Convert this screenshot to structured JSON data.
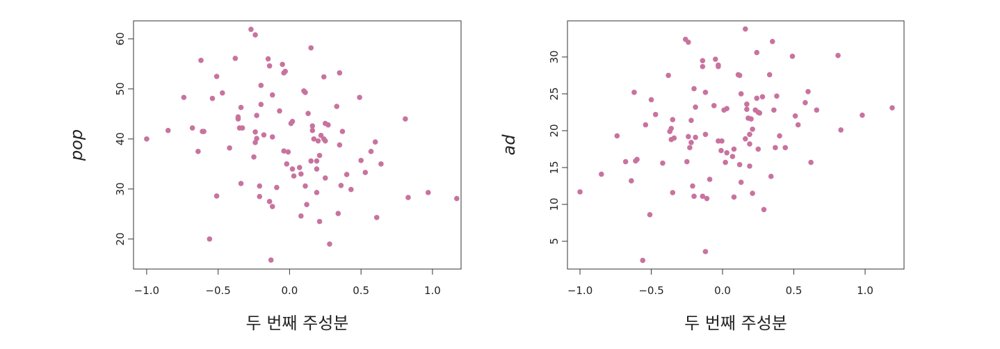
{
  "chart_data": [
    {
      "type": "scatter",
      "x_label": "두 번째 주성분",
      "y_label": "pop",
      "color": "#c8739f",
      "xlim": [
        -1.092,
        1.2
      ],
      "ylim": [
        14.0,
        63.6
      ],
      "xticks": [
        {
          "value": -1.0,
          "label": "−1.0"
        },
        {
          "value": -0.5,
          "label": "−0.5"
        },
        {
          "value": 0.0,
          "label": "0.0"
        },
        {
          "value": 0.5,
          "label": "0.5"
        },
        {
          "value": 1.0,
          "label": "1.0"
        }
      ],
      "yticks": [
        20,
        30,
        40,
        50,
        60
      ],
      "x": [
        -1.0,
        -0.85,
        -0.74,
        -0.68,
        -0.62,
        -0.61,
        -0.6,
        -0.64,
        -0.56,
        -0.54,
        -0.51,
        -0.51,
        -0.47,
        -0.42,
        -0.38,
        -0.36,
        -0.36,
        -0.35,
        -0.34,
        -0.34,
        -0.33,
        -0.27,
        -0.24,
        -0.25,
        -0.24,
        -0.24,
        -0.23,
        -0.23,
        -0.21,
        -0.2,
        -0.21,
        -0.2,
        -0.18,
        -0.15,
        -0.14,
        -0.14,
        -0.13,
        -0.12,
        -0.12,
        -0.12,
        -0.09,
        -0.07,
        -0.05,
        -0.04,
        -0.03,
        -0.04,
        -0.01,
        -0.02,
        0.01,
        0.02,
        0.02,
        0.03,
        0.07,
        0.08,
        0.08,
        0.1,
        0.11,
        0.11,
        0.12,
        0.13,
        0.15,
        0.15,
        0.16,
        0.16,
        0.17,
        0.19,
        0.19,
        0.19,
        0.2,
        0.21,
        0.21,
        0.22,
        0.24,
        0.24,
        0.25,
        0.25,
        0.25,
        0.27,
        0.28,
        0.33,
        0.34,
        0.35,
        0.35,
        0.36,
        0.37,
        0.4,
        0.43,
        0.49,
        0.5,
        0.53,
        0.57,
        0.6,
        0.61,
        0.64,
        0.81,
        0.83,
        0.97,
        1.17
      ],
      "values": [
        40.0,
        41.7,
        48.3,
        42.2,
        55.7,
        41.5,
        41.5,
        37.5,
        20.0,
        48.1,
        28.6,
        52.5,
        49.2,
        38.2,
        56.1,
        44.0,
        44.4,
        42.2,
        46.3,
        31.1,
        42.2,
        61.9,
        60.8,
        36.4,
        41.4,
        39.3,
        40.1,
        44.7,
        30.6,
        50.7,
        28.5,
        46.9,
        40.8,
        56.0,
        54.6,
        27.5,
        15.8,
        40.4,
        48.8,
        26.5,
        30.3,
        45.6,
        54.9,
        53.2,
        53.5,
        37.6,
        37.4,
        35.0,
        43.1,
        43.5,
        34.0,
        32.6,
        34.3,
        33.0,
        24.6,
        49.6,
        49.3,
        30.6,
        26.9,
        45.1,
        58.2,
        35.6,
        42.6,
        41.7,
        40.0,
        35.6,
        34.0,
        29.3,
        39.6,
        36.7,
        23.5,
        40.7,
        40.0,
        52.4,
        43.1,
        32.2,
        39.6,
        42.8,
        19.0,
        46.5,
        25.1,
        53.2,
        38.8,
        30.7,
        41.5,
        32.9,
        29.9,
        48.3,
        35.7,
        33.3,
        37.5,
        39.4,
        24.3,
        35.0,
        44.0,
        28.3,
        29.3,
        28.1
      ]
    },
    {
      "type": "scatter",
      "x_label": "두 번째 주성분",
      "y_label": "ad",
      "color": "#c8739f",
      "xlim": [
        -1.088,
        1.273
      ],
      "ylim": [
        1.23,
        34.9
      ],
      "xticks": [
        {
          "value": -1.0,
          "label": "−1.0"
        },
        {
          "value": -0.5,
          "label": "−0.5"
        },
        {
          "value": 0.0,
          "label": "0.0"
        },
        {
          "value": 0.5,
          "label": "0.5"
        },
        {
          "value": 1.0,
          "label": "1.0"
        }
      ],
      "yticks": [
        5,
        10,
        15,
        20,
        25,
        30
      ],
      "x": [
        -1.0,
        -0.85,
        -0.74,
        -0.68,
        -0.64,
        -0.61,
        -0.6,
        -0.62,
        -0.56,
        -0.54,
        -0.51,
        -0.5,
        -0.47,
        -0.42,
        -0.38,
        -0.37,
        -0.36,
        -0.36,
        -0.35,
        -0.35,
        -0.34,
        -0.26,
        -0.24,
        -0.25,
        -0.24,
        -0.23,
        -0.22,
        -0.22,
        -0.21,
        -0.2,
        -0.2,
        -0.19,
        -0.19,
        -0.14,
        -0.14,
        -0.14,
        -0.12,
        -0.12,
        -0.12,
        -0.11,
        -0.09,
        -0.06,
        -0.05,
        -0.03,
        -0.03,
        -0.03,
        -0.005,
        -0.01,
        0.01,
        0.03,
        0.02,
        0.03,
        0.07,
        0.08,
        0.08,
        0.11,
        0.12,
        0.12,
        0.13,
        0.13,
        0.16,
        0.16,
        0.17,
        0.17,
        0.18,
        0.19,
        0.19,
        0.19,
        0.2,
        0.21,
        0.21,
        0.24,
        0.23,
        0.24,
        0.25,
        0.25,
        0.26,
        0.28,
        0.29,
        0.33,
        0.34,
        0.35,
        0.36,
        0.37,
        0.38,
        0.4,
        0.44,
        0.49,
        0.51,
        0.53,
        0.58,
        0.6,
        0.62,
        0.66,
        0.81,
        0.83,
        0.98,
        1.19
      ],
      "values": [
        11.7,
        14.1,
        19.3,
        15.8,
        13.2,
        15.9,
        16.1,
        25.2,
        2.4,
        20.8,
        8.6,
        24.2,
        22.2,
        15.6,
        27.5,
        19.9,
        20.3,
        18.8,
        21.5,
        11.6,
        19.0,
        32.4,
        32.0,
        15.8,
        19.2,
        17.7,
        18.4,
        21.4,
        12.5,
        25.7,
        11.1,
        23.2,
        19.1,
        29.5,
        28.7,
        11.1,
        3.6,
        19.5,
        25.2,
        10.8,
        13.4,
        23.4,
        29.7,
        28.9,
        28.7,
        18.6,
        18.6,
        17.3,
        22.8,
        23.0,
        15.7,
        17.0,
        16.5,
        17.5,
        11.0,
        27.6,
        27.5,
        15.4,
        13.0,
        25.0,
        33.8,
        18.9,
        23.6,
        22.9,
        21.7,
        18.2,
        15.2,
        19.5,
        21.6,
        20.2,
        11.5,
        30.6,
        22.8,
        24.4,
        22.5,
        17.5,
        22.4,
        24.6,
        9.3,
        27.6,
        13.8,
        32.1,
        22.8,
        17.7,
        24.7,
        19.3,
        17.7,
        30.1,
        22.0,
        20.8,
        23.8,
        25.3,
        15.7,
        22.8,
        30.2,
        20.1,
        22.1,
        23.1
      ]
    }
  ]
}
